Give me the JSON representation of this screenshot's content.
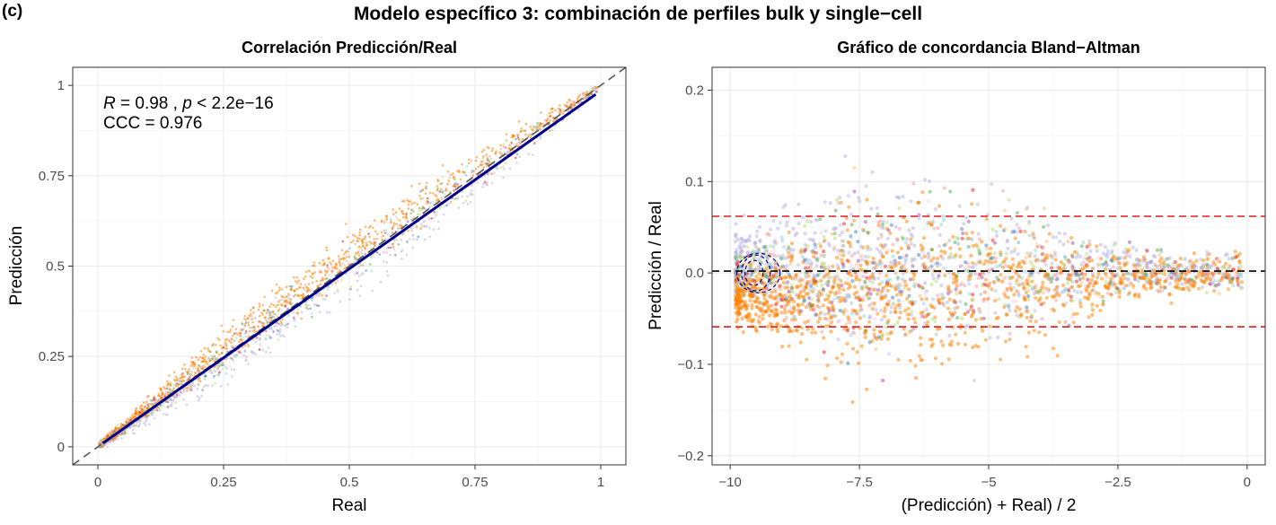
{
  "figure": {
    "panel_tag": "(c)",
    "main_title": "Modelo específico 3: combinación de perfiles bulk y single−cell"
  },
  "colors": {
    "regression_line": "#00008b",
    "identity_line": "#555555",
    "mean_line": "#000000",
    "limit_lines": "#e31a1c",
    "orange_dominant": "#ff7f00",
    "lavender_dominant": "#b8b0e0",
    "palette": [
      "#e41a1c",
      "#ff7f00",
      "#4daf4a",
      "#377eb8",
      "#984ea3",
      "#a6cee3",
      "#b2df8a",
      "#fb9a99",
      "#fdbf6f",
      "#cab2d6",
      "#8dd3c7",
      "#bebada",
      "#80b1d3",
      "#fccde5",
      "#b3de69"
    ]
  },
  "chart_data": [
    {
      "type": "scatter",
      "title": "Correlación Predicción/Real",
      "xlabel": "Real",
      "ylabel": "Predicción",
      "xlim": [
        -0.05,
        1.05
      ],
      "ylim": [
        -0.05,
        1.05
      ],
      "xticks": [
        0,
        0.25,
        0.5,
        0.75,
        1
      ],
      "xtick_labels": [
        "0",
        "0.25",
        "0.5",
        "0.75",
        "1"
      ],
      "yticks": [
        0,
        0.25,
        0.5,
        0.75,
        1
      ],
      "ytick_labels": [
        "0",
        "0.25",
        "0.5",
        "0.75",
        "1"
      ],
      "grid": true,
      "annotation": {
        "r_symbol": "R",
        "r_value": " = 0.98 , ",
        "p_symbol": "p",
        "p_value": " < 2.2e−16",
        "ccc": "CCC = 0.976"
      },
      "identity_line": {
        "slope": 1,
        "intercept": 0,
        "style": "dashed"
      },
      "regression_line": {
        "x": [
          0.01,
          0.99
        ],
        "y": [
          0.01,
          0.975
        ]
      }
    },
    {
      "type": "scatter",
      "title": "Gráfico de concordancia Bland−Altman",
      "xlabel": "(Predicción) + Real) / 2",
      "ylabel": "Predicción / Real",
      "xlim": [
        -10.35,
        0.35
      ],
      "ylim": [
        -0.21,
        0.225
      ],
      "xticks": [
        -10,
        -7.5,
        -5,
        -2.5,
        0
      ],
      "xtick_labels": [
        "−10",
        "−7.5",
        "−5",
        "−2.5",
        "0"
      ],
      "yticks": [
        -0.2,
        -0.1,
        0,
        0.1,
        0.2
      ],
      "ytick_labels": [
        "−0.2",
        "−0.1",
        "0.0",
        "0.1",
        "0.2"
      ],
      "grid": true,
      "mean_line": 0.002,
      "upper_limit": 0.062,
      "lower_limit": -0.059
    }
  ]
}
